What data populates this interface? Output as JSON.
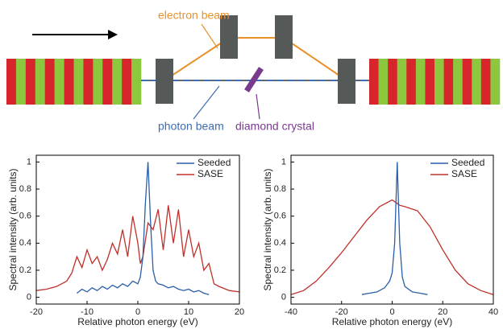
{
  "diagram": {
    "electron_label": "electron beam",
    "photon_label": "photon beam",
    "crystal_label": "diamond crystal"
  },
  "chart_data": [
    {
      "type": "line",
      "xlabel": "Relative photon energy (eV)",
      "ylabel": "Spectral intensity (arb. units)",
      "xlim": [
        -20,
        20
      ],
      "xticks": [
        -20,
        -10,
        0,
        10,
        20
      ],
      "ylim": [
        -0.05,
        1.05
      ],
      "yticks": [
        0,
        0.2,
        0.4,
        0.6,
        0.8,
        1
      ],
      "legend": "upper right",
      "series": [
        {
          "name": "Seeded",
          "color": "#2a5fa8",
          "x": [
            -12,
            -11,
            -10,
            -9,
            -8,
            -7,
            -6,
            -5,
            -4,
            -3,
            -2,
            -1,
            0,
            0.5,
            1,
            1.5,
            2,
            2.5,
            3,
            3.5,
            4,
            5,
            6,
            7,
            8,
            9,
            10,
            11,
            12,
            13,
            14
          ],
          "values": [
            0.03,
            0.06,
            0.04,
            0.07,
            0.05,
            0.08,
            0.06,
            0.09,
            0.07,
            0.1,
            0.08,
            0.12,
            0.1,
            0.15,
            0.3,
            0.7,
            1.0,
            0.55,
            0.2,
            0.12,
            0.1,
            0.09,
            0.07,
            0.08,
            0.06,
            0.05,
            0.06,
            0.04,
            0.05,
            0.03,
            0.02
          ]
        },
        {
          "name": "SASE",
          "color": "#c0302a",
          "x": [
            -20,
            -18,
            -16,
            -15,
            -14,
            -13,
            -12,
            -11,
            -10,
            -9,
            -8,
            -7,
            -6,
            -5,
            -4,
            -3,
            -2,
            -1,
            0,
            0.5,
            1,
            2,
            3,
            4,
            5,
            6,
            7,
            8,
            9,
            10,
            11,
            12,
            13,
            14,
            15,
            16,
            18,
            20
          ],
          "values": [
            0.05,
            0.06,
            0.08,
            0.1,
            0.12,
            0.18,
            0.3,
            0.22,
            0.35,
            0.25,
            0.3,
            0.2,
            0.28,
            0.4,
            0.32,
            0.5,
            0.3,
            0.6,
            0.4,
            0.25,
            0.3,
            0.55,
            0.5,
            0.65,
            0.35,
            0.68,
            0.4,
            0.65,
            0.3,
            0.5,
            0.3,
            0.4,
            0.2,
            0.25,
            0.1,
            0.08,
            0.05,
            0.04
          ]
        }
      ]
    },
    {
      "type": "line",
      "xlabel": "Relative photon energy (eV)",
      "ylabel": "Spectral intensity (arb. units)",
      "xlim": [
        -40,
        40
      ],
      "xticks": [
        -40,
        -20,
        0,
        20,
        40
      ],
      "ylim": [
        -0.05,
        1.05
      ],
      "yticks": [
        0,
        0.2,
        0.4,
        0.6,
        0.8,
        1
      ],
      "legend": "upper right",
      "series": [
        {
          "name": "Seeded",
          "color": "#2a5fa8",
          "x": [
            -12,
            -9,
            -6,
            -3,
            -1,
            0,
            1,
            1.5,
            2,
            2.5,
            3,
            4,
            5,
            8,
            11,
            14
          ],
          "values": [
            0.02,
            0.03,
            0.04,
            0.07,
            0.12,
            0.18,
            0.4,
            0.7,
            1.0,
            0.7,
            0.4,
            0.15,
            0.08,
            0.04,
            0.03,
            0.02
          ]
        },
        {
          "name": "SASE",
          "color": "#c0302a",
          "x": [
            -40,
            -35,
            -30,
            -25,
            -20,
            -15,
            -10,
            -5,
            0,
            3,
            5,
            10,
            15,
            20,
            25,
            30,
            35,
            40
          ],
          "values": [
            0.02,
            0.05,
            0.12,
            0.22,
            0.33,
            0.45,
            0.57,
            0.67,
            0.72,
            0.68,
            0.67,
            0.64,
            0.52,
            0.35,
            0.2,
            0.1,
            0.05,
            0.02
          ]
        }
      ]
    }
  ]
}
